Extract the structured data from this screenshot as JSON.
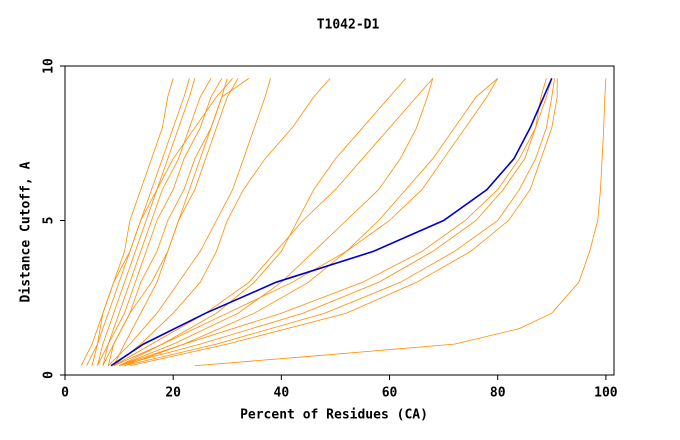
{
  "chart_data": {
    "type": "line",
    "title": "T1042-D1",
    "x_label": "Percent of Residues (CA)",
    "y_label": "Distance Cutoff, A",
    "xlim": [
      0,
      101.5
    ],
    "ylim": [
      0,
      10
    ],
    "xticks": [
      0,
      20,
      40,
      60,
      80,
      100
    ],
    "yticks": [
      0,
      5,
      10
    ],
    "series": [
      {
        "color": "#ff8c00",
        "x": [
          4,
          6,
          7,
          9,
          11,
          12,
          14,
          16,
          18,
          19,
          20
        ],
        "values": [
          0.3,
          1,
          2,
          3,
          4,
          5,
          6,
          7,
          8,
          9,
          9.6
        ]
      },
      {
        "color": "#ff8c00",
        "x": [
          5,
          6,
          8,
          10,
          12,
          14,
          16,
          18,
          20,
          22,
          23
        ],
        "values": [
          0.3,
          1,
          2,
          3,
          4,
          5,
          6,
          7,
          8,
          9,
          9.6
        ]
      },
      {
        "color": "#ff8c00",
        "x": [
          6,
          7,
          9,
          11,
          13,
          15,
          17,
          19,
          21,
          23,
          24
        ],
        "values": [
          0.3,
          1,
          2,
          3,
          4,
          5,
          6,
          7,
          8,
          9,
          9.6
        ]
      },
      {
        "color": "#ff8c00",
        "x": [
          6,
          8,
          10,
          12,
          14,
          16,
          18,
          21,
          23,
          25,
          27
        ],
        "values": [
          0.3,
          1,
          2,
          3,
          4,
          5,
          6,
          7,
          8,
          9,
          9.6
        ]
      },
      {
        "color": "#ff8c00",
        "x": [
          7,
          8,
          11,
          13,
          15,
          17,
          20,
          22,
          25,
          27,
          29
        ],
        "values": [
          0.3,
          1,
          2,
          3,
          4,
          5,
          6,
          7,
          8,
          9,
          9.6
        ]
      },
      {
        "color": "#ff8c00",
        "x": [
          8,
          9,
          12,
          14,
          17,
          19,
          22,
          24,
          27,
          29,
          30
        ],
        "values": [
          0.3,
          1,
          2,
          3,
          4,
          5,
          6,
          7,
          8,
          9,
          9.6
        ]
      },
      {
        "color": "#ff8c00",
        "x": [
          3,
          5,
          7,
          9,
          12,
          14,
          17,
          20,
          24,
          28,
          31
        ],
        "values": [
          0.3,
          1,
          2,
          3,
          4,
          5,
          6,
          7,
          8,
          9,
          9.6
        ]
      },
      {
        "color": "#ff8c00",
        "x": [
          7,
          9,
          12,
          16,
          19,
          21,
          24,
          26,
          28,
          30,
          32
        ],
        "values": [
          0.3,
          1,
          2,
          3,
          4,
          5,
          6,
          7,
          8,
          9,
          9.6
        ]
      },
      {
        "color": "#ff8c00",
        "x": [
          9,
          11,
          14,
          17,
          19,
          21,
          23,
          25,
          27,
          29,
          34
        ],
        "values": [
          0.3,
          1,
          2,
          3,
          4,
          5,
          6,
          7,
          8,
          9,
          9.6
        ]
      },
      {
        "color": "#ff8c00",
        "x": [
          8,
          12,
          17,
          21,
          25,
          28,
          31,
          33,
          35,
          37,
          38
        ],
        "values": [
          0.3,
          1,
          2,
          3,
          4,
          5,
          6,
          7,
          8,
          9,
          9.6
        ]
      },
      {
        "color": "#ff8c00",
        "x": [
          9,
          14,
          20,
          25,
          28,
          30,
          33,
          37,
          42,
          46,
          49
        ],
        "values": [
          0.3,
          1,
          2,
          3,
          4,
          5,
          6,
          7,
          8,
          9,
          9.6
        ]
      },
      {
        "color": "#ff8c00",
        "x": [
          10,
          18,
          28,
          35,
          40,
          43,
          46,
          50,
          55,
          60,
          63
        ],
        "values": [
          0.3,
          1,
          2,
          3,
          4,
          5,
          6,
          7,
          8,
          9,
          9.6
        ]
      },
      {
        "color": "#ff8c00",
        "x": [
          9,
          16,
          26,
          34,
          39,
          44,
          50,
          55,
          60,
          65,
          68
        ],
        "values": [
          0.3,
          1,
          2,
          3,
          4,
          5,
          6,
          7,
          8,
          9,
          9.6
        ]
      },
      {
        "color": "#ff8c00",
        "x": [
          10,
          20,
          32,
          40,
          46,
          52,
          58,
          62,
          65,
          67,
          68
        ],
        "values": [
          0.3,
          1,
          2,
          3,
          4,
          5,
          6,
          7,
          8,
          9,
          9.6
        ]
      },
      {
        "color": "#ff8c00",
        "x": [
          11,
          22,
          35,
          45,
          52,
          58,
          63,
          68,
          72,
          76,
          80
        ],
        "values": [
          0.3,
          1,
          2,
          3,
          4,
          5,
          6,
          7,
          8,
          9,
          9.6
        ]
      },
      {
        "color": "#ff8c00",
        "x": [
          9,
          18,
          30,
          42,
          52,
          60,
          66,
          70,
          74,
          78,
          80
        ],
        "values": [
          0.3,
          1,
          2,
          3,
          4,
          5,
          6,
          7,
          8,
          9,
          9.6
        ]
      },
      {
        "color": "#ff8c00",
        "x": [
          10,
          25,
          44,
          58,
          68,
          76,
          81,
          85,
          87,
          88,
          89
        ],
        "values": [
          0.3,
          1,
          2,
          3,
          4,
          5,
          6,
          7,
          8,
          9,
          9.6
        ]
      },
      {
        "color": "#ff8c00",
        "x": [
          11,
          28,
          48,
          62,
          72,
          80,
          84,
          87,
          89,
          90,
          90.5
        ],
        "values": [
          0.3,
          1,
          2,
          3,
          4,
          5,
          6,
          7,
          8,
          9,
          9.6
        ]
      },
      {
        "color": "#ff8c00",
        "x": [
          12,
          30,
          52,
          65,
          75,
          82,
          86,
          88,
          90,
          91,
          91
        ],
        "values": [
          0.3,
          1,
          2,
          3,
          4,
          5,
          6,
          7,
          8,
          9,
          9.6
        ]
      },
      {
        "color": "#ff8c00",
        "x": [
          10,
          22,
          40,
          55,
          66,
          74,
          80,
          84,
          87,
          89,
          90
        ],
        "values": [
          0.3,
          1,
          2,
          3,
          4,
          5,
          6,
          7,
          8,
          9,
          9.6
        ]
      },
      {
        "color": "#ff8c00",
        "x": [
          24,
          45,
          72,
          84,
          90,
          95,
          97,
          98.5,
          99,
          99.3,
          99.6,
          99.8,
          100
        ],
        "values": [
          0.3,
          0.6,
          1,
          1.5,
          2,
          3,
          4,
          5,
          6,
          7,
          8,
          9,
          9.6
        ]
      },
      {
        "color": "#0000cc",
        "x": [
          8.5,
          14.5,
          26,
          39,
          57,
          70,
          78,
          83,
          86,
          88.5,
          90
        ],
        "values": [
          0.3,
          1,
          2,
          3,
          4,
          5,
          6,
          7,
          8,
          9,
          9.6
        ]
      }
    ]
  }
}
